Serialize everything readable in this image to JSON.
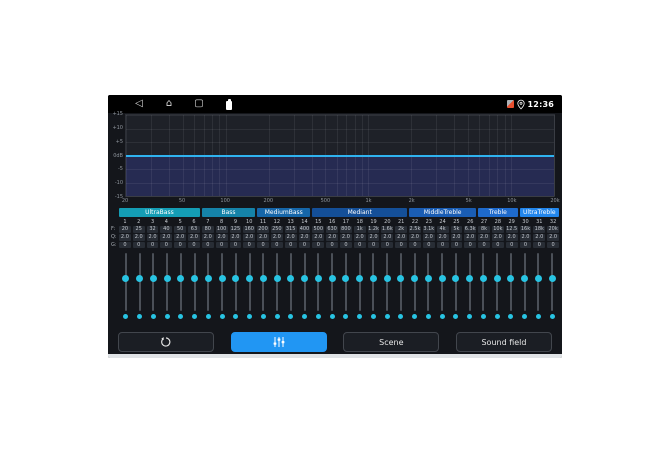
{
  "status_bar": {
    "time": "12:36",
    "nav": {
      "back": "◁",
      "home": "⌂",
      "recents": "▢"
    }
  },
  "graph": {
    "y_ticks": [
      "+15",
      "+10",
      "+5",
      "0dB",
      "-5",
      "-10",
      "-15"
    ],
    "x_ticks": [
      {
        "label": "20",
        "f": 20
      },
      {
        "label": "50",
        "f": 50
      },
      {
        "label": "100",
        "f": 100
      },
      {
        "label": "200",
        "f": 200
      },
      {
        "label": "500",
        "f": 500
      },
      {
        "label": "1k",
        "f": 1000
      },
      {
        "label": "2k",
        "f": 2000
      },
      {
        "label": "5k",
        "f": 5000
      },
      {
        "label": "10k",
        "f": 10000
      },
      {
        "label": "20k",
        "f": 20000
      }
    ],
    "grid_freqs": [
      20,
      30,
      40,
      50,
      60,
      70,
      80,
      90,
      100,
      200,
      300,
      400,
      500,
      600,
      700,
      800,
      900,
      1000,
      2000,
      3000,
      4000,
      5000,
      6000,
      7000,
      8000,
      9000,
      10000,
      20000
    ],
    "freq_range_hz": [
      20,
      20000
    ],
    "gain_range_db": [
      -15,
      15
    ],
    "curve_gain_db": 0,
    "curve_color": "#2fb3f0",
    "fill_color": "#262b52"
  },
  "band_groups": [
    {
      "label": "UltraBass",
      "span": 6,
      "color": "#149db5"
    },
    {
      "label": "Bass",
      "span": 4,
      "color": "#1583a9"
    },
    {
      "label": "MediumBass",
      "span": 4,
      "color": "#1566a9"
    },
    {
      "label": "Mediant",
      "span": 7,
      "color": "#144f98"
    },
    {
      "label": "MiddleTreble",
      "span": 5,
      "color": "#1a5db4"
    },
    {
      "label": "Treble",
      "span": 3,
      "color": "#1e6acc"
    },
    {
      "label": "UltraTreble",
      "span": 3,
      "color": "#2286ec"
    }
  ],
  "eq_table": {
    "row_labels": {
      "freq": "F:",
      "q": "Q:",
      "gain": "G:"
    },
    "band_numbers": [
      "1",
      "2",
      "3",
      "4",
      "5",
      "6",
      "7",
      "8",
      "9",
      "10",
      "11",
      "12",
      "13",
      "14",
      "15",
      "16",
      "17",
      "18",
      "19",
      "20",
      "21",
      "22",
      "23",
      "24",
      "25",
      "26",
      "27",
      "28",
      "29",
      "30",
      "31",
      "32"
    ],
    "freq_values": [
      "20",
      "25",
      "32",
      "40",
      "50",
      "63",
      "80",
      "100",
      "125",
      "160",
      "200",
      "250",
      "315",
      "400",
      "500",
      "630",
      "800",
      "1k",
      "1.2k",
      "1.6k",
      "2k",
      "2.5k",
      "3.1k",
      "4k",
      "5k",
      "6.3k",
      "8k",
      "10k",
      "12.5",
      "16k",
      "18k",
      "20k"
    ],
    "q_values": [
      "2.0",
      "2.0",
      "2.0",
      "2.0",
      "2.0",
      "2.0",
      "2.0",
      "2.0",
      "2.0",
      "2.0",
      "2.0",
      "2.0",
      "2.0",
      "2.0",
      "2.0",
      "2.0",
      "2.0",
      "2.0",
      "2.0",
      "2.0",
      "2.0",
      "2.0",
      "2.0",
      "2.0",
      "2.0",
      "2.0",
      "2.0",
      "2.0",
      "2.0",
      "2.0",
      "2.0",
      "2.0"
    ],
    "gain_values": [
      "0",
      "0",
      "0",
      "0",
      "0",
      "0",
      "0",
      "0",
      "0",
      "0",
      "0",
      "0",
      "0",
      "0",
      "0",
      "0",
      "0",
      "0",
      "0",
      "0",
      "0",
      "0",
      "0",
      "0",
      "0",
      "0",
      "0",
      "0",
      "0",
      "0",
      "0",
      "0"
    ]
  },
  "sliders": {
    "count": 32,
    "gain_value_db": 0,
    "range_db": [
      -15,
      15
    ],
    "handle_color": "#28c4e3"
  },
  "buttons": {
    "reset": {
      "icon": "reset-icon"
    },
    "equalizer": {
      "icon": "eq-sliders-icon",
      "active": true,
      "color": "#2196f3"
    },
    "scene": {
      "label": "Scene"
    },
    "sound_field": {
      "label": "Sound field"
    }
  }
}
